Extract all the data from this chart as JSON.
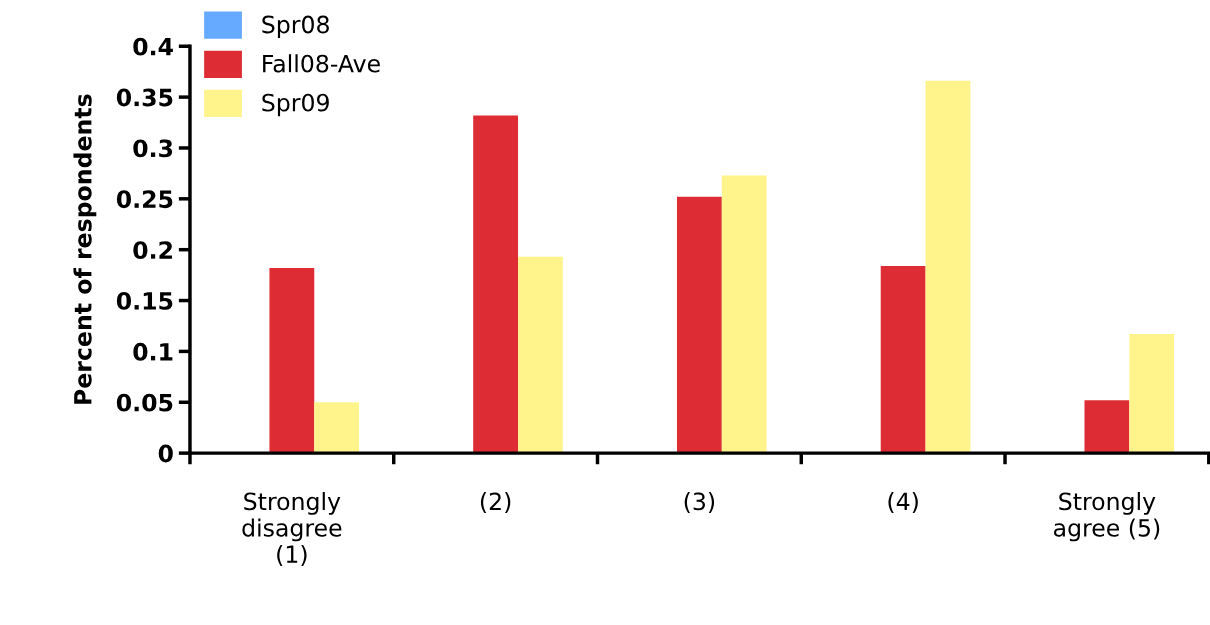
{
  "chart_data": {
    "type": "bar",
    "ylabel": "Percent of respondents",
    "categories": [
      "Strongly\ndisagree\n(1)",
      "(2)",
      "(3)",
      "(4)",
      "Strongly\nagree (5)"
    ],
    "series": [
      {
        "name": "Spr08",
        "color": "#66aaff",
        "values": [
          null,
          null,
          null,
          null,
          null
        ]
      },
      {
        "name": "Fall08-Ave",
        "color": "#dd2c33",
        "values": [
          0.182,
          0.332,
          0.252,
          0.184,
          0.052
        ]
      },
      {
        "name": "Spr09",
        "color": "#fff48c",
        "values": [
          0.05,
          0.193,
          0.273,
          0.366,
          0.117
        ]
      }
    ],
    "ylim": [
      0,
      0.4
    ],
    "yticks": [
      {
        "value": 0,
        "label": "0"
      },
      0.05,
      0.1,
      0.15,
      0.2,
      0.25,
      0.3,
      0.35,
      0.4
    ],
    "grid": false,
    "legend": "top left"
  }
}
